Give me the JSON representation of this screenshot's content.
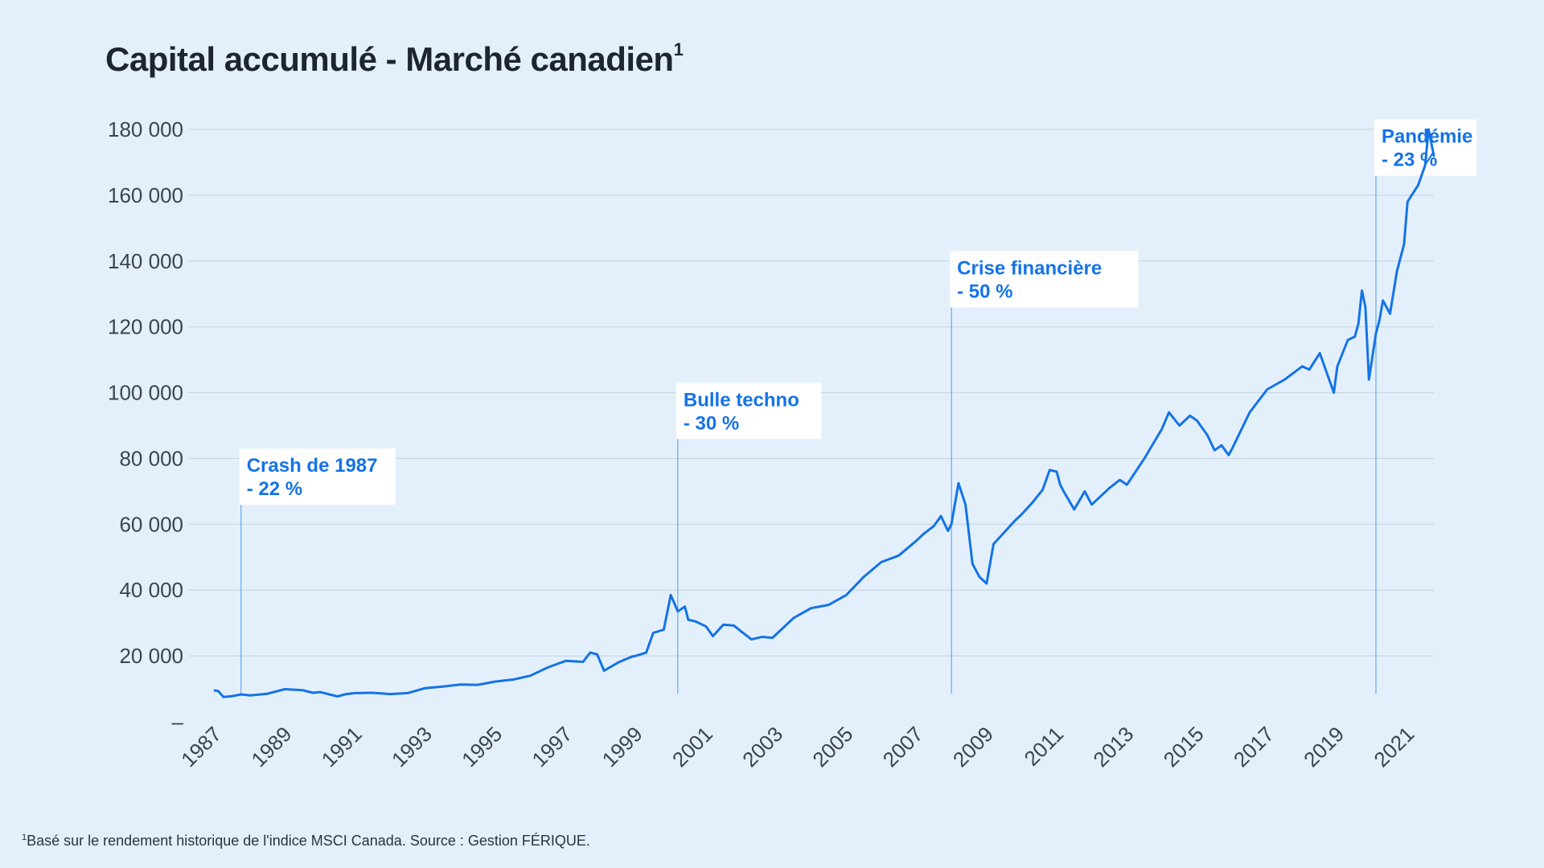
{
  "header": {
    "title": "Capital accumulé - Marché canadien",
    "title_sup": "1"
  },
  "footnote": {
    "sup": "1",
    "text": "Basé sur le rendement historique de l'indice MSCI Canada. Source : Gestion FÉRIQUE."
  },
  "colors": {
    "background": "#e3f0fc",
    "line": "#1473e6",
    "grid": "#c9d6e3",
    "text": "#1c2531"
  },
  "chart_data": {
    "type": "line",
    "title": "Capital accumulé - Marché canadien",
    "xlabel": "",
    "ylabel": "",
    "xlim": [
      1987,
      2021.75
    ],
    "ylim": [
      0,
      180000
    ],
    "grid": true,
    "y_ticks": [
      {
        "value": 0,
        "label": "–"
      },
      {
        "value": 20000,
        "label": "20 000"
      },
      {
        "value": 40000,
        "label": "40 000"
      },
      {
        "value": 60000,
        "label": "60 000"
      },
      {
        "value": 80000,
        "label": "80 000"
      },
      {
        "value": 100000,
        "label": "100 000"
      },
      {
        "value": 120000,
        "label": "120 000"
      },
      {
        "value": 140000,
        "label": "140 000"
      },
      {
        "value": 160000,
        "label": "160 000"
      },
      {
        "value": 180000,
        "label": "180 000"
      }
    ],
    "x_ticks": [
      "1987",
      "1989",
      "1991",
      "1993",
      "1995",
      "1997",
      "1999",
      "2001",
      "2003",
      "2005",
      "2007",
      "2009",
      "2011",
      "2013",
      "2015",
      "2017",
      "2019",
      "2021"
    ],
    "series": [
      {
        "x": [
          1987.0,
          1987.1,
          1987.25,
          1987.5,
          1987.75,
          1988.0,
          1988.5,
          1989.0,
          1989.5,
          1989.8,
          1990.0,
          1990.5,
          1990.75,
          1991.0,
          1991.5,
          1992.0,
          1992.5,
          1993.0,
          1993.5,
          1994.0,
          1994.5,
          1995.0,
          1995.5,
          1996.0,
          1996.5,
          1997.0,
          1997.5,
          1997.7,
          1997.9,
          1998.1,
          1998.5,
          1998.9,
          1999.0,
          1999.3,
          1999.5,
          1999.8,
          2000.0,
          2000.2,
          2000.4,
          2000.5,
          2000.7,
          2001.0,
          2001.2,
          2001.5,
          2001.8,
          2002.0,
          2002.3,
          2002.6,
          2002.9,
          2003.0,
          2003.5,
          2004.0,
          2004.5,
          2005.0,
          2005.5,
          2006.0,
          2006.5,
          2007.0,
          2007.2,
          2007.5,
          2007.7,
          2007.9,
          2008.0,
          2008.2,
          2008.4,
          2008.6,
          2008.8,
          2009.0,
          2009.2,
          2009.5,
          2009.8,
          2010.0,
          2010.3,
          2010.6,
          2010.8,
          2011.0,
          2011.1,
          2011.2,
          2011.5,
          2011.8,
          2012.0,
          2012.5,
          2012.8,
          2013.0,
          2013.5,
          2014.0,
          2014.2,
          2014.5,
          2014.8,
          2015.0,
          2015.3,
          2015.5,
          2015.7,
          2015.9,
          2016.0,
          2016.5,
          2017.0,
          2017.5,
          2018.0,
          2018.2,
          2018.5,
          2018.7,
          2018.9,
          2019.0,
          2019.3,
          2019.5,
          2019.6,
          2019.7,
          2019.8,
          2019.9,
          2020.1,
          2020.2,
          2020.3,
          2020.5,
          2020.7,
          2020.9,
          2021.0,
          2021.3,
          2021.5,
          2021.6,
          2021.75
        ],
        "y": [
          9500,
          9300,
          7500,
          7800,
          8300,
          8000,
          8500,
          9900,
          9600,
          8800,
          9000,
          7700,
          8400,
          8700,
          8800,
          8400,
          8700,
          10200,
          10700,
          11300,
          11200,
          12200,
          12800,
          14000,
          16500,
          18500,
          18200,
          21000,
          20500,
          15500,
          18000,
          19800,
          20000,
          21000,
          27000,
          28000,
          38500,
          33500,
          35000,
          31000,
          30500,
          29000,
          26000,
          29500,
          29200,
          27500,
          25000,
          25800,
          25500,
          26500,
          31500,
          34500,
          35500,
          38500,
          44000,
          48500,
          50500,
          55000,
          57000,
          59500,
          62500,
          58000,
          60000,
          72500,
          66000,
          48000,
          44000,
          42000,
          54000,
          57500,
          61000,
          63000,
          66500,
          70500,
          76500,
          76000,
          72000,
          70000,
          64500,
          70000,
          66000,
          71000,
          73500,
          72000,
          80000,
          89000,
          94000,
          90000,
          93000,
          91500,
          87000,
          82500,
          84000,
          81000,
          83000,
          94000,
          101000,
          104000,
          108000,
          107000,
          112000,
          106000,
          100000,
          108000,
          116000,
          117000,
          121000,
          131000,
          126000,
          104000,
          118000,
          122000,
          128000,
          124000,
          137000,
          145000,
          158000,
          163000,
          169000,
          180000,
          172000
        ]
      }
    ],
    "annotations": [
      {
        "label_line1": "Crash de 1987",
        "label_line2": "- 22 %",
        "x": 1987.75,
        "y_text": 62000
      },
      {
        "label_line1": "Bulle techno",
        "label_line2": "- 30 %",
        "x": 2000.2,
        "y_text": 82000
      },
      {
        "label_line1": "Crise financière",
        "label_line2": "- 50 %",
        "x": 2008.0,
        "y_text": 122000
      },
      {
        "label_line1": "Pandémie",
        "label_line2": "- 23 %",
        "x": 2020.1,
        "y_text": 162000
      }
    ]
  }
}
